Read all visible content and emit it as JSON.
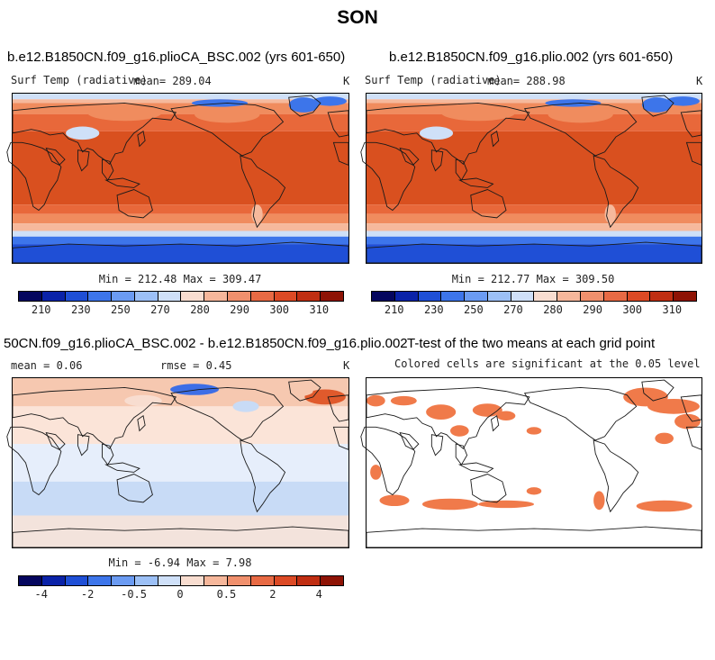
{
  "title": "SON",
  "panels": {
    "a": {
      "title": "b.e12.B1850CN.f09_g16.plioCA_BSC.002 (yrs 601-650)",
      "var_label": "Surf Temp (radiative)",
      "mean_label": "mean= 289.04",
      "units": "K",
      "minmax": "Min = 212.48 Max = 309.47"
    },
    "b": {
      "title": "b.e12.B1850CN.f09_g16.plio.002 (yrs 601-650)",
      "var_label": "Surf Temp (radiative)",
      "mean_label": "mean= 288.98",
      "units": "K",
      "minmax": "Min = 212.77 Max = 309.50"
    },
    "c": {
      "title": "50CN.f09_g16.plioCA_BSC.002 - b.e12.B1850CN.f09_g16.plio.002",
      "mean_label": "mean =   0.06",
      "rmse_label": "rmse =   0.45",
      "units": "K",
      "minmax": "Min =  -6.94 Max =   7.98"
    },
    "d": {
      "title": "T-test of the two means at each grid point",
      "subtitle": "Colored cells are significant at the 0.05 level"
    }
  },
  "colorbars": {
    "temperature": {
      "colors": [
        "#05065e",
        "#0a22a8",
        "#1f4fd6",
        "#3d75ea",
        "#6b9bf2",
        "#9cc0f6",
        "#cfe0f8",
        "#f8ddd0",
        "#f6b79b",
        "#f0906d",
        "#e86a44",
        "#dc4a25",
        "#c02e12",
        "#8e1305"
      ],
      "labels": [
        "210",
        "230",
        "250",
        "270",
        "280",
        "290",
        "300",
        "310"
      ]
    },
    "difference": {
      "colors": [
        "#05065e",
        "#0a22a8",
        "#1f4fd6",
        "#3d75ea",
        "#6b9bf2",
        "#9cc0f6",
        "#cfe0f8",
        "#f8ddd0",
        "#f6b79b",
        "#f0906d",
        "#e86a44",
        "#dc4a25",
        "#c02e12",
        "#8e1305"
      ],
      "labels": [
        "-4",
        "-2",
        "-0.5",
        "0",
        "0.5",
        "2",
        "4"
      ]
    }
  },
  "map_colors": {
    "equatorial": "#d9501f",
    "tropical": "#e8683a",
    "subtropical": "#f08c5e",
    "midlat": "#f6b99c",
    "highlat_light": "#cfe0f8",
    "polar_mid": "#3d75ea",
    "polar_deep": "#1f4fd6",
    "diff_pos": "#f6c8b0",
    "diff_neg": "#c8dbf6",
    "diff_strong_pos": "#e05a2c",
    "diff_strong_neg": "#3d6ee6",
    "signif": "#f07a4a",
    "coast": "#1a1a1a"
  }
}
